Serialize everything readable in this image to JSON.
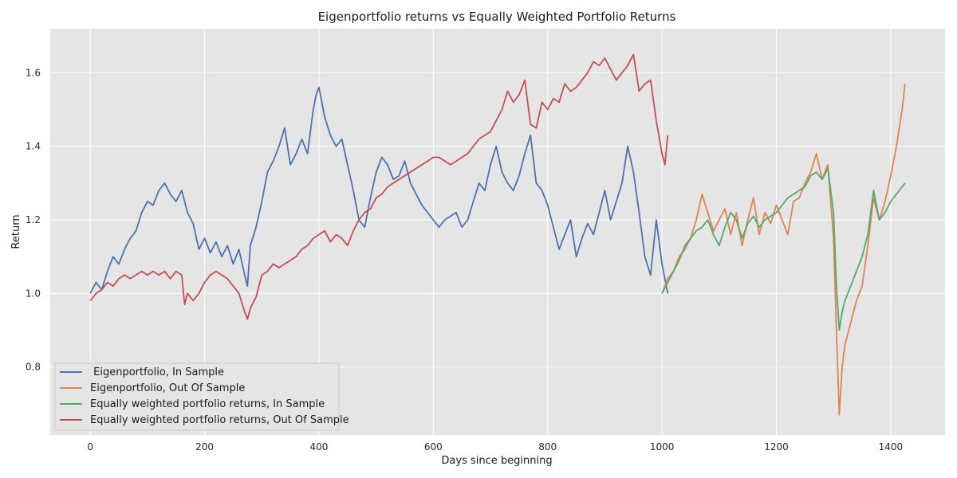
{
  "chart_data": {
    "type": "line",
    "title": "Eigenportfolio returns vs Equally Weighted Portfolio Returns",
    "xlabel": "Days since beginning",
    "ylabel": "Return",
    "xlim": [
      -70,
      1495
    ],
    "ylim": [
      0.615,
      1.72
    ],
    "xticks": [
      0,
      200,
      400,
      600,
      800,
      1000,
      1200,
      1400
    ],
    "yticks": [
      0.8,
      1.0,
      1.2,
      1.4,
      1.6
    ],
    "xtick_labels": [
      "0",
      "200",
      "400",
      "600",
      "800",
      "1000",
      "1200",
      "1400"
    ],
    "ytick_labels": [
      "0.8",
      "1.0",
      "1.2",
      "1.4",
      "1.6"
    ],
    "grid": true,
    "legend_position": "lower-left",
    "background": "#e5e5e5",
    "series": [
      {
        "name": " Eigenportfolio, In Sample",
        "color": "#4c72b0",
        "x": [
          0,
          10,
          20,
          30,
          40,
          50,
          60,
          70,
          80,
          90,
          100,
          110,
          120,
          130,
          140,
          150,
          160,
          170,
          180,
          190,
          200,
          210,
          220,
          230,
          240,
          250,
          260,
          270,
          275,
          280,
          290,
          300,
          310,
          320,
          330,
          340,
          350,
          360,
          370,
          380,
          390,
          395,
          400,
          410,
          420,
          430,
          440,
          450,
          460,
          470,
          480,
          490,
          500,
          510,
          520,
          530,
          540,
          550,
          560,
          570,
          580,
          590,
          600,
          610,
          620,
          630,
          640,
          650,
          660,
          670,
          680,
          690,
          700,
          710,
          720,
          730,
          740,
          750,
          760,
          770,
          780,
          790,
          800,
          810,
          820,
          830,
          840,
          850,
          860,
          870,
          880,
          890,
          900,
          910,
          920,
          930,
          940,
          950,
          960,
          970,
          980,
          990,
          1000,
          1010
        ],
        "y": [
          1.0,
          1.03,
          1.01,
          1.06,
          1.1,
          1.08,
          1.12,
          1.15,
          1.17,
          1.22,
          1.25,
          1.24,
          1.28,
          1.3,
          1.27,
          1.25,
          1.28,
          1.22,
          1.19,
          1.12,
          1.15,
          1.11,
          1.14,
          1.1,
          1.13,
          1.08,
          1.12,
          1.05,
          1.02,
          1.13,
          1.18,
          1.25,
          1.33,
          1.36,
          1.4,
          1.45,
          1.35,
          1.38,
          1.42,
          1.38,
          1.5,
          1.54,
          1.56,
          1.48,
          1.43,
          1.4,
          1.42,
          1.35,
          1.28,
          1.2,
          1.18,
          1.26,
          1.33,
          1.37,
          1.35,
          1.31,
          1.32,
          1.36,
          1.3,
          1.27,
          1.24,
          1.22,
          1.2,
          1.18,
          1.2,
          1.21,
          1.22,
          1.18,
          1.2,
          1.25,
          1.3,
          1.28,
          1.35,
          1.4,
          1.33,
          1.3,
          1.28,
          1.32,
          1.38,
          1.43,
          1.3,
          1.28,
          1.24,
          1.18,
          1.12,
          1.16,
          1.2,
          1.1,
          1.15,
          1.19,
          1.16,
          1.22,
          1.28,
          1.2,
          1.25,
          1.3,
          1.4,
          1.33,
          1.22,
          1.1,
          1.05,
          1.2,
          1.08,
          1.0
        ]
      },
      {
        "name": "Eigenportfolio, Out Of Sample",
        "color": "#dd8452",
        "x": [
          1000,
          1010,
          1020,
          1030,
          1040,
          1050,
          1060,
          1070,
          1080,
          1090,
          1100,
          1110,
          1120,
          1130,
          1140,
          1150,
          1160,
          1170,
          1180,
          1190,
          1200,
          1210,
          1220,
          1230,
          1240,
          1250,
          1260,
          1270,
          1280,
          1290,
          1300,
          1305,
          1310,
          1315,
          1320,
          1330,
          1340,
          1350,
          1360,
          1370,
          1380,
          1390,
          1400,
          1410,
          1420,
          1425
        ],
        "y": [
          1.0,
          1.04,
          1.06,
          1.1,
          1.12,
          1.15,
          1.2,
          1.27,
          1.22,
          1.17,
          1.2,
          1.23,
          1.16,
          1.22,
          1.13,
          1.2,
          1.26,
          1.16,
          1.22,
          1.19,
          1.24,
          1.2,
          1.16,
          1.25,
          1.26,
          1.3,
          1.33,
          1.38,
          1.31,
          1.35,
          1.15,
          0.9,
          0.67,
          0.8,
          0.86,
          0.92,
          0.98,
          1.02,
          1.13,
          1.26,
          1.2,
          1.25,
          1.32,
          1.4,
          1.5,
          1.57
        ]
      },
      {
        "name": "Equally weighted portfolio returns, In Sample",
        "color": "#55a868",
        "x": [
          1000,
          1010,
          1020,
          1030,
          1040,
          1050,
          1060,
          1070,
          1080,
          1090,
          1100,
          1110,
          1120,
          1130,
          1140,
          1150,
          1160,
          1170,
          1180,
          1190,
          1200,
          1210,
          1220,
          1230,
          1240,
          1250,
          1260,
          1270,
          1280,
          1290,
          1300,
          1305,
          1310,
          1315,
          1320,
          1330,
          1340,
          1350,
          1360,
          1370,
          1380,
          1390,
          1400,
          1410,
          1420,
          1425
        ],
        "y": [
          1.0,
          1.03,
          1.06,
          1.09,
          1.13,
          1.15,
          1.17,
          1.18,
          1.2,
          1.16,
          1.13,
          1.18,
          1.22,
          1.2,
          1.15,
          1.19,
          1.21,
          1.18,
          1.2,
          1.21,
          1.22,
          1.24,
          1.26,
          1.27,
          1.28,
          1.29,
          1.32,
          1.33,
          1.31,
          1.34,
          1.22,
          1.02,
          0.9,
          0.95,
          0.98,
          1.02,
          1.06,
          1.1,
          1.16,
          1.28,
          1.2,
          1.22,
          1.25,
          1.27,
          1.29,
          1.3
        ]
      },
      {
        "name": "Equally weighted portfolio returns, Out Of Sample",
        "color": "#c44e52",
        "x": [
          0,
          10,
          20,
          30,
          40,
          50,
          60,
          70,
          80,
          90,
          100,
          110,
          120,
          130,
          140,
          150,
          160,
          165,
          170,
          180,
          190,
          200,
          210,
          220,
          230,
          240,
          250,
          260,
          270,
          275,
          280,
          290,
          300,
          310,
          320,
          330,
          340,
          350,
          360,
          370,
          380,
          390,
          400,
          410,
          420,
          430,
          440,
          450,
          460,
          470,
          480,
          490,
          500,
          510,
          520,
          530,
          540,
          550,
          560,
          570,
          580,
          590,
          600,
          610,
          620,
          630,
          640,
          650,
          660,
          670,
          680,
          690,
          700,
          710,
          720,
          730,
          740,
          750,
          760,
          770,
          780,
          790,
          800,
          810,
          820,
          830,
          840,
          850,
          860,
          870,
          880,
          890,
          900,
          910,
          920,
          930,
          940,
          950,
          960,
          970,
          980,
          990,
          1000,
          1005,
          1010
        ],
        "y": [
          0.98,
          1.0,
          1.01,
          1.03,
          1.02,
          1.04,
          1.05,
          1.04,
          1.05,
          1.06,
          1.05,
          1.06,
          1.05,
          1.06,
          1.04,
          1.06,
          1.05,
          0.97,
          1.0,
          0.98,
          1.0,
          1.03,
          1.05,
          1.06,
          1.05,
          1.04,
          1.02,
          1.0,
          0.95,
          0.93,
          0.96,
          0.99,
          1.05,
          1.06,
          1.08,
          1.07,
          1.08,
          1.09,
          1.1,
          1.12,
          1.13,
          1.15,
          1.16,
          1.17,
          1.14,
          1.16,
          1.15,
          1.13,
          1.17,
          1.2,
          1.22,
          1.23,
          1.26,
          1.27,
          1.29,
          1.3,
          1.31,
          1.32,
          1.33,
          1.34,
          1.35,
          1.36,
          1.37,
          1.37,
          1.36,
          1.35,
          1.36,
          1.37,
          1.38,
          1.4,
          1.42,
          1.43,
          1.44,
          1.47,
          1.5,
          1.55,
          1.52,
          1.54,
          1.58,
          1.46,
          1.45,
          1.52,
          1.5,
          1.53,
          1.52,
          1.57,
          1.55,
          1.56,
          1.58,
          1.6,
          1.63,
          1.62,
          1.64,
          1.61,
          1.58,
          1.6,
          1.62,
          1.65,
          1.55,
          1.57,
          1.58,
          1.47,
          1.38,
          1.35,
          1.43
        ]
      }
    ]
  }
}
